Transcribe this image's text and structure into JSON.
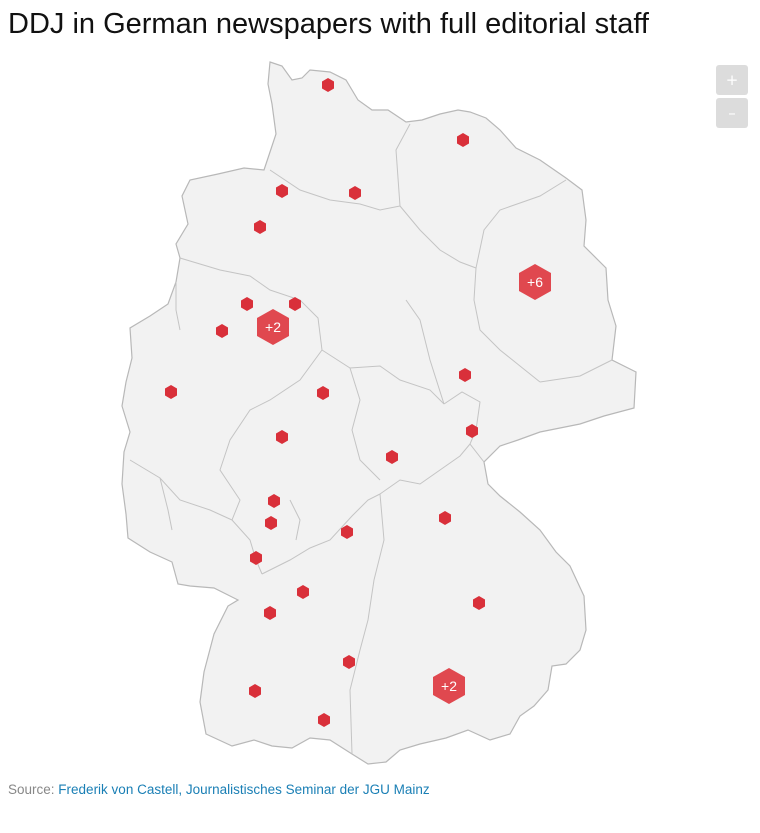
{
  "title": "DDJ in German newspapers with full editorial staff",
  "zoom": {
    "in_label": "+",
    "out_label": "–"
  },
  "source": {
    "prefix": "Source:",
    "link_text": "Frederik von Castell, Journalistisches Seminar der JGU Mainz"
  },
  "colors": {
    "marker": "#d9303a",
    "cluster": "#e0484f",
    "land": "#f2f2f2",
    "border": "#b8b8b8"
  },
  "clusters": [
    {
      "label": "+6"
    },
    {
      "label": "+2"
    },
    {
      "label": "+2"
    }
  ]
}
